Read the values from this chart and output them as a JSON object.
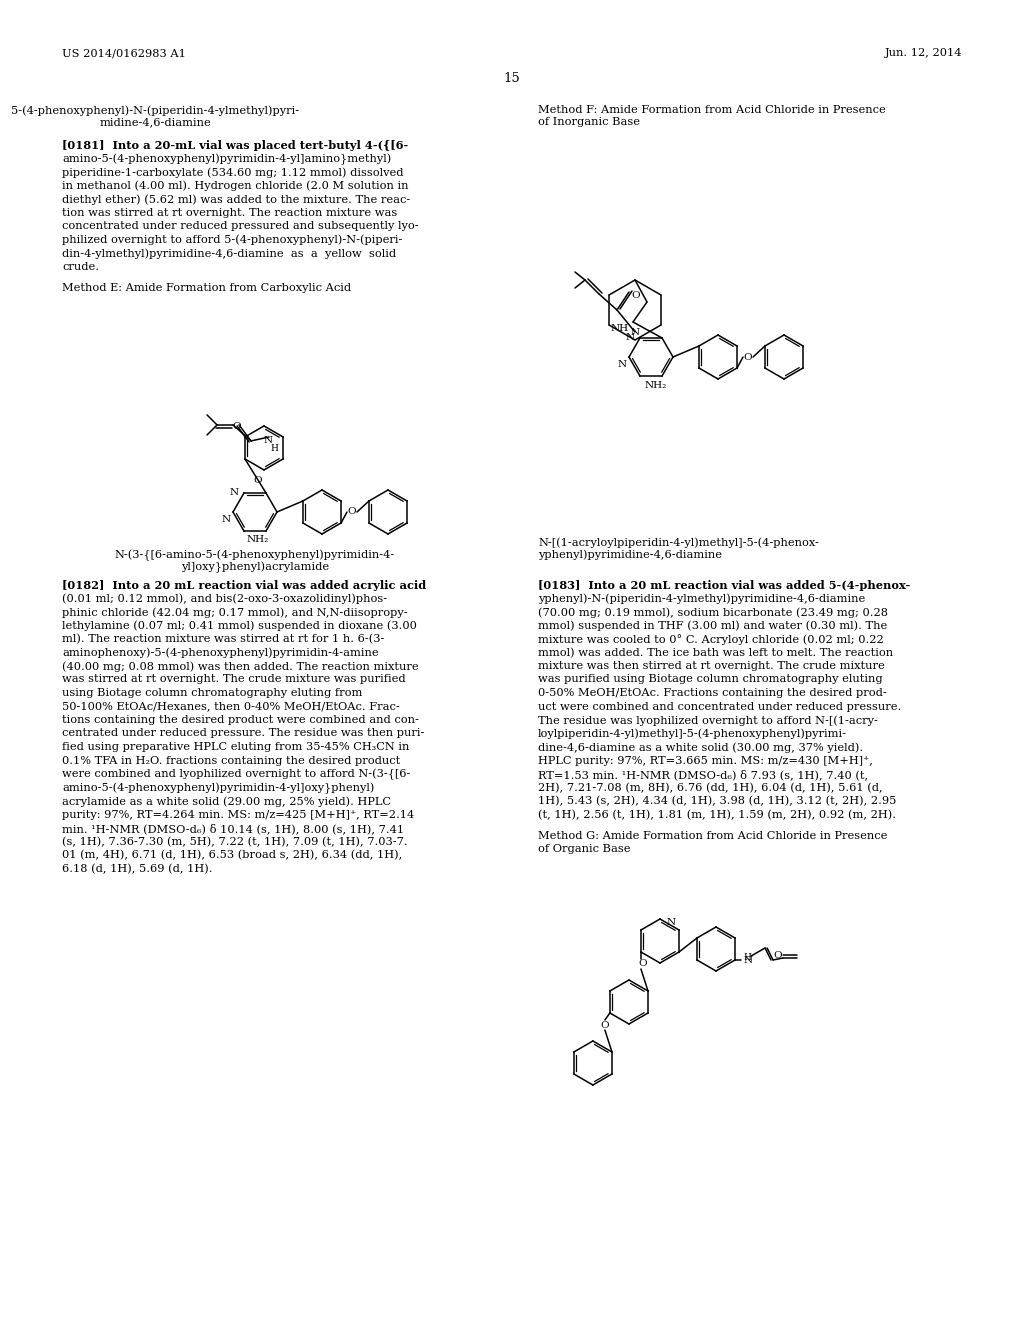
{
  "page_number": "15",
  "patent_number": "US 2014/0162983 A1",
  "patent_date": "Jun. 12, 2014",
  "background_color": "#ffffff",
  "text_color": "#000000",
  "left_col_title1_line1": "5-(4-phenoxyphenyl)-N-(piperidin-4-ylmethyl)pyri-",
  "left_col_title1_line2": "midine-4,6-diamine",
  "right_col_title1_line1": "Method F: Amide Formation from Acid Chloride in Presence",
  "right_col_title1_line2": "of Inorganic Base",
  "para_181_lines": [
    "[0181]  Into a 20-mL vial was placed tert-butyl 4-({[6-",
    "amino-5-(4-phenoxyphenyl)pyrimidin-4-yl]amino}methyl)",
    "piperidine-1-carboxylate (534.60 mg; 1.12 mmol) dissolved",
    "in methanol (4.00 ml). Hydrogen chloride (2.0 M solution in",
    "diethyl ether) (5.62 ml) was added to the mixture. The reac-",
    "tion was stirred at rt overnight. The reaction mixture was",
    "concentrated under reduced pressured and subsequently lyo-",
    "philized overnight to afford 5-(4-phenoxyphenyl)-N-(piperi-",
    "din-4-ylmethyl)pyrimidine-4,6-diamine  as  a  yellow  solid",
    "crude."
  ],
  "method_e_label": "Method E: Amide Formation from Carboxylic Acid",
  "struct_label_left_line1": "N-(3-{[6-amino-5-(4-phenoxyphenyl)pyrimidin-4-",
  "struct_label_left_line2": "yl]oxy}phenyl)acrylamide",
  "struct_label_right_line1": "N-[(1-acryloylpiperidin-4-yl)methyl]-5-(4-phenox-",
  "struct_label_right_line2": "yphenyl)pyrimidine-4,6-diamine",
  "para_182_lines": [
    "[0182]  Into a 20 mL reaction vial was added acrylic acid",
    "(0.01 ml; 0.12 mmol), and bis(2-oxo-3-oxazolidinyl)phos-",
    "phinic chloride (42.04 mg; 0.17 mmol), and N,N-diisopropy-",
    "lethylamine (0.07 ml; 0.41 mmol) suspended in dioxane (3.00",
    "ml). The reaction mixture was stirred at rt for 1 h. 6-(3-",
    "aminophenoxy)-5-(4-phenoxyphenyl)pyrimidin-4-amine",
    "(40.00 mg; 0.08 mmol) was then added. The reaction mixture",
    "was stirred at rt overnight. The crude mixture was purified",
    "using Biotage column chromatography eluting from",
    "50-100% EtOAc/Hexanes, then 0-40% MeOH/EtOAc. Frac-",
    "tions containing the desired product were combined and con-",
    "centrated under reduced pressure. The residue was then puri-",
    "fied using preparative HPLC eluting from 35-45% CH₃CN in",
    "0.1% TFA in H₂O. fractions containing the desired product",
    "were combined and lyophilized overnight to afford N-(3-{[6-",
    "amino-5-(4-phenoxyphenyl)pyrimidin-4-yl]oxy}phenyl)",
    "acrylamide as a white solid (29.00 mg, 25% yield). HPLC",
    "purity: 97%, RT=4.264 min. MS: m/z=425 [M+H]⁺, RT=2.14",
    "min. ¹H-NMR (DMSO-d₆) δ 10.14 (s, 1H), 8.00 (s, 1H), 7.41",
    "(s, 1H), 7.36-7.30 (m, 5H), 7.22 (t, 1H), 7.09 (t, 1H), 7.03-7.",
    "01 (m, 4H), 6.71 (d, 1H), 6.53 (broad s, 2H), 6.34 (dd, 1H),",
    "6.18 (d, 1H), 5.69 (d, 1H)."
  ],
  "para_183_lines": [
    "[0183]  Into a 20 mL reaction vial was added 5-(4-phenox-",
    "yphenyl)-N-(piperidin-4-ylmethyl)pyrimidine-4,6-diamine",
    "(70.00 mg; 0.19 mmol), sodium bicarbonate (23.49 mg; 0.28",
    "mmol) suspended in THF (3.00 ml) and water (0.30 ml). The",
    "mixture was cooled to 0° C. Acryloyl chloride (0.02 ml; 0.22",
    "mmol) was added. The ice bath was left to melt. The reaction",
    "mixture was then stirred at rt overnight. The crude mixture",
    "was purified using Biotage column chromatography eluting",
    "0-50% MeOH/EtOAc. Fractions containing the desired prod-",
    "uct were combined and concentrated under reduced pressure.",
    "The residue was lyophilized overnight to afford N-[(1-acry-",
    "loylpiperidin-4-yl)methyl]-5-(4-phenoxyphenyl)pyrimi-",
    "dine-4,6-diamine as a white solid (30.00 mg, 37% yield).",
    "HPLC purity: 97%, RT=3.665 min. MS: m/z=430 [M+H]⁺,",
    "RT=1.53 min. ¹H-NMR (DMSO-d₆) δ 7.93 (s, 1H), 7.40 (t,",
    "2H), 7.21-7.08 (m, 8H), 6.76 (dd, 1H), 6.04 (d, 1H), 5.61 (d,",
    "1H), 5.43 (s, 2H), 4.34 (d, 1H), 3.98 (d, 1H), 3.12 (t, 2H), 2.95",
    "(t, 1H), 2.56 (t, 1H), 1.81 (m, 1H), 1.59 (m, 2H), 0.92 (m, 2H)."
  ],
  "method_g_label_line1": "Method G: Amide Formation from Acid Chloride in Presence",
  "method_g_label_line2": "of Organic Base"
}
